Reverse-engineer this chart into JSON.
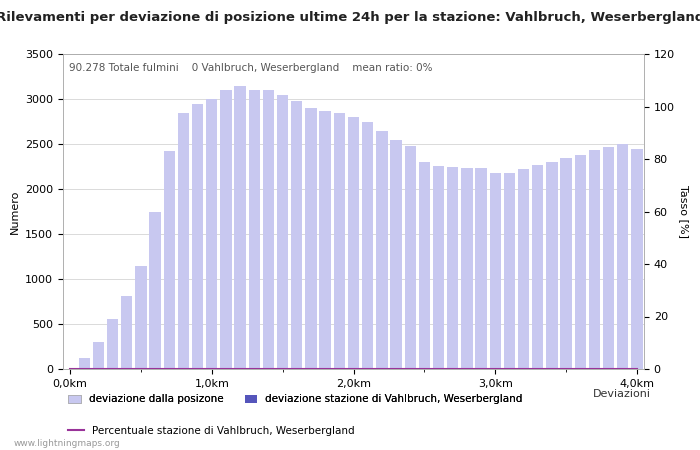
{
  "title": "Rilevamenti per deviazione di posizione ultime 24h per la stazione: Vahlbruch, Weserbergland",
  "subtitle": "90.278 Totale fulmini    0 Vahlbruch, Weserbergland    mean ratio: 0%",
  "ylabel_left": "Numero",
  "ylabel_right": "Tasso [%]",
  "xlabel_right": "Deviazioni",
  "watermark": "www.lightningmaps.org",
  "x_ticks_labels": [
    "0,0km",
    "1,0km",
    "2,0km",
    "3,0km",
    "4,0km"
  ],
  "ylim_left": [
    0,
    3500
  ],
  "ylim_right": [
    0,
    120
  ],
  "light_bar_color": "#c8c8f0",
  "dark_bar_color": "#5555bb",
  "line_color": "#993399",
  "background_color": "#ffffff",
  "grid_color": "#cccccc",
  "values_light": [
    0,
    120,
    300,
    560,
    810,
    1150,
    1740,
    2420,
    2850,
    2950,
    3000,
    3100,
    3150,
    3100,
    3100,
    3050,
    2980,
    2900,
    2870,
    2840,
    2800,
    2740,
    2650,
    2550,
    2480,
    2300,
    2260,
    2240,
    2230,
    2230,
    2180,
    2180,
    2220,
    2270,
    2300,
    2340,
    2380,
    2430,
    2470,
    2500,
    2450
  ],
  "values_dark": [
    0,
    0,
    0,
    0,
    0,
    0,
    0,
    0,
    0,
    0,
    0,
    0,
    0,
    0,
    0,
    0,
    0,
    0,
    0,
    0,
    0,
    0,
    0,
    0,
    0,
    0,
    0,
    0,
    0,
    0,
    0,
    0,
    0,
    0,
    0,
    0,
    0,
    0,
    0,
    0,
    0
  ],
  "values_line": [
    0,
    0,
    0,
    0,
    0,
    0,
    0,
    0,
    0,
    0,
    0,
    0,
    0,
    0,
    0,
    0,
    0,
    0,
    0,
    0,
    0,
    0,
    0,
    0,
    0,
    0,
    0,
    0,
    0,
    0,
    0,
    0,
    0,
    0,
    0,
    0,
    0,
    0,
    0,
    0,
    0
  ],
  "legend1_label": "deviazione dalla posizone",
  "legend2_label": "deviazione stazione di Vahlbruch, Weserbergland",
  "legend3_label": "Percentuale stazione di Vahlbruch, Weserbergland",
  "title_fontsize": 9.5,
  "subtitle_fontsize": 7.5,
  "axis_fontsize": 8,
  "tick_fontsize": 8
}
